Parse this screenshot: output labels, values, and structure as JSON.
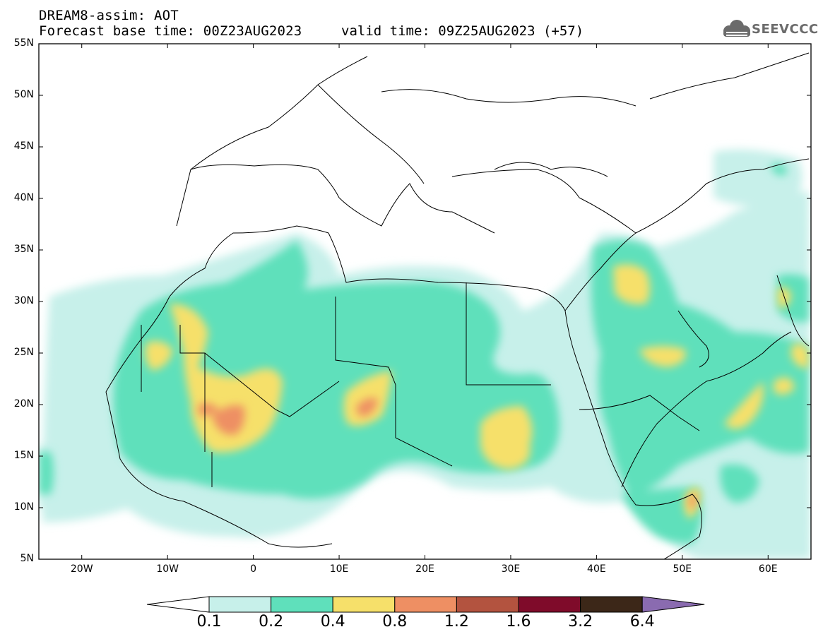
{
  "header": {
    "title_line1": "DREAM8-assim: AOT",
    "title_line2": "Forecast base time: 00Z23AUG2023",
    "valid_time": "valid time: 09Z25AUG2023 (+57)",
    "logo_text": "SEEVCCC",
    "logo_icon": "cloud-icon"
  },
  "map": {
    "lon_range": [
      -25,
      65
    ],
    "lat_range": [
      5,
      55
    ],
    "lat_labels": [
      "55N",
      "50N",
      "45N",
      "40N",
      "35N",
      "30N",
      "25N",
      "20N",
      "15N",
      "10N",
      "5N"
    ],
    "lat_values": [
      55,
      50,
      45,
      40,
      35,
      30,
      25,
      20,
      15,
      10,
      5
    ],
    "lon_labels": [
      "20W",
      "10W",
      "0",
      "10E",
      "20E",
      "30E",
      "40E",
      "50E",
      "60E"
    ],
    "lon_values": [
      -20,
      -10,
      0,
      10,
      20,
      30,
      40,
      50,
      60
    ],
    "background": "#ffffff"
  },
  "legend": {
    "levels": [
      "0.1",
      "0.2",
      "0.4",
      "0.8",
      "1.2",
      "1.6",
      "3.2",
      "6.4"
    ],
    "colors": [
      "#c7f0ea",
      "#5fe0bb",
      "#f6e06a",
      "#ee8f63",
      "#b3533f",
      "#7f0b2a",
      "#3c2718",
      "#8a6bb0"
    ],
    "low_arrow_color": "#ffffff"
  }
}
